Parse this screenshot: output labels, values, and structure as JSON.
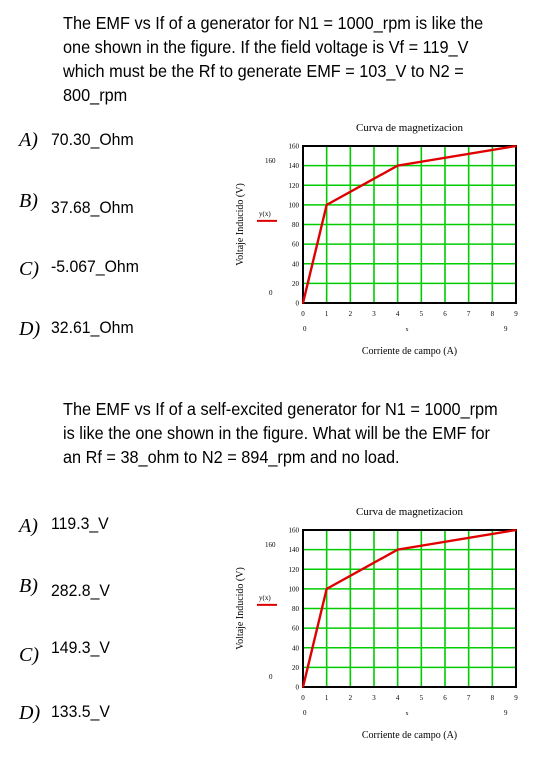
{
  "questions": [
    {
      "text": "The EMF vs If of a generator for N1 = 1000_rpm is like the one shown in the figure. If the field voltage is Vf = 119_V which must be the Rf to generate EMF = 103_V to N2 = 800_rpm",
      "options": [
        {
          "letter": "A)",
          "value": "70.30_Ohm"
        },
        {
          "letter": "B)",
          "value": "37.68_Ohm"
        },
        {
          "letter": "C)",
          "value": "-5.067_Ohm"
        },
        {
          "letter": "D)",
          "value": "32.61_Ohm"
        }
      ]
    },
    {
      "text": "The EMF vs If of a self-excited generator for N1 = 1000_rpm is like the one shown in the figure. What will be the EMF for an Rf = 38_ohm to N2 = 894_rpm and no load.",
      "options": [
        {
          "letter": "A)",
          "value": "119.3_V"
        },
        {
          "letter": "B)",
          "value": "282.8_V"
        },
        {
          "letter": "C)",
          "value": "149.3_V"
        },
        {
          "letter": "D)",
          "value": "133.5_V"
        }
      ]
    }
  ],
  "chart_data": [
    {
      "type": "line",
      "title": "Curva de magnetizacion",
      "xlabel": "Corriente de campo (A)",
      "ylabel": "Voltaje Inducido (V)",
      "xlim": [
        0,
        9
      ],
      "ylim": [
        0,
        160
      ],
      "xticks": [
        "0",
        "1",
        "2",
        "3",
        "4",
        "5",
        "6",
        "7",
        "8",
        "9"
      ],
      "yticks": [
        "0",
        "20",
        "40",
        "60",
        "80",
        "100",
        "120",
        "140",
        "160"
      ],
      "grid": true,
      "marker_labels": {
        "y_top": "160",
        "y_mid": "y(x)",
        "y_zero": "0",
        "x_left": "0",
        "x_mid": "x",
        "x_right": "9"
      },
      "series": [
        {
          "x": [
            0,
            1,
            4,
            9
          ],
          "y": [
            0,
            100,
            140,
            160
          ],
          "color": "#e00000"
        }
      ],
      "grid_color": "#00cc00"
    },
    {
      "type": "line",
      "title": "Curva de magnetizacion",
      "xlabel": "Corriente de campo (A)",
      "ylabel": "Voltaje Inducido (V)",
      "xlim": [
        0,
        9
      ],
      "ylim": [
        0,
        160
      ],
      "xticks": [
        "0",
        "1",
        "2",
        "3",
        "4",
        "5",
        "6",
        "7",
        "8",
        "9"
      ],
      "yticks": [
        "0",
        "20",
        "40",
        "60",
        "80",
        "100",
        "120",
        "140",
        "160"
      ],
      "grid": true,
      "marker_labels": {
        "y_top": "160",
        "y_mid": "y(x)",
        "y_zero": "0",
        "x_left": "0",
        "x_mid": "x",
        "x_right": "9"
      },
      "series": [
        {
          "x": [
            0,
            1,
            4,
            9
          ],
          "y": [
            0,
            100,
            140,
            160
          ],
          "color": "#e00000"
        }
      ],
      "grid_color": "#00cc00"
    }
  ]
}
